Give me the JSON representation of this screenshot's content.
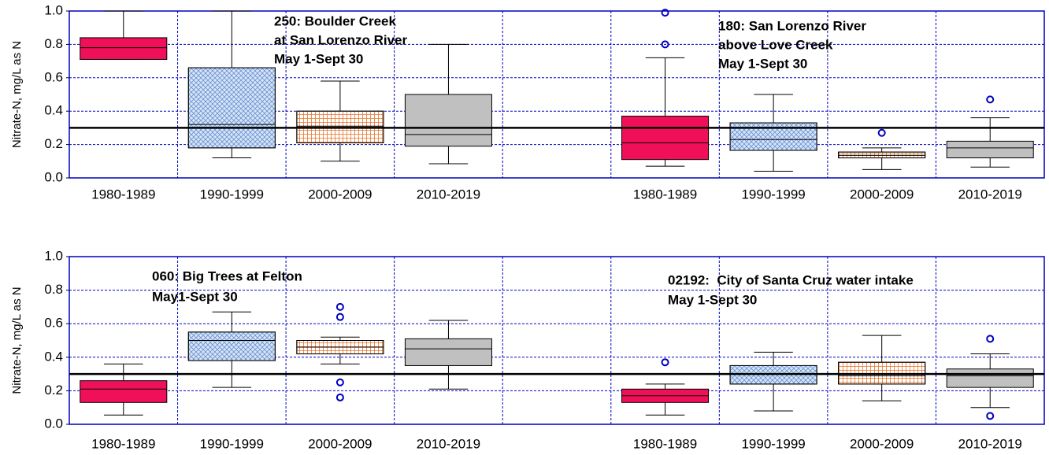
{
  "chart_data": [
    {
      "type": "box",
      "ylabel": "Nitrate-N, mg/L as N",
      "categories": [
        "1980-1989",
        "1990-1999",
        "2000-2009",
        "2010-2019",
        null,
        "1980-1989",
        "1990-1999",
        "2000-2009",
        "2010-2019"
      ],
      "colors": [
        "#f0105a",
        "#d6e6f7",
        "#ffffff",
        "#c0c0c0",
        null,
        "#f0105a",
        "#d6e6f7",
        "#ffffff",
        "#c0c0c0"
      ],
      "hatches": [
        "none",
        "crosshatch",
        "grid",
        "none",
        null,
        "none",
        "crosshatch",
        "grid",
        "none"
      ],
      "ylim": [
        0,
        1
      ],
      "yticks": [
        {
          "value": 0,
          "label": "0.0"
        },
        0.2,
        0.4,
        0.6,
        0.8,
        {
          "value": 1,
          "label": "1.0"
        }
      ],
      "grid": true,
      "reference_line": 0.3,
      "boxes": [
        {
          "whisker_low": 0.71,
          "q1": 0.71,
          "median": 0.78,
          "q3": 0.84,
          "whisker_high": 1.0,
          "outliers": []
        },
        {
          "whisker_low": 0.12,
          "q1": 0.18,
          "median": 0.32,
          "q3": 0.66,
          "whisker_high": 1.0,
          "outliers": []
        },
        {
          "whisker_low": 0.1,
          "q1": 0.21,
          "median": 0.31,
          "q3": 0.4,
          "whisker_high": 0.58,
          "outliers": []
        },
        {
          "whisker_low": 0.085,
          "q1": 0.19,
          "median": 0.26,
          "q3": 0.5,
          "whisker_high": 0.8,
          "outliers": []
        },
        null,
        {
          "whisker_low": 0.07,
          "q1": 0.11,
          "median": 0.21,
          "q3": 0.37,
          "whisker_high": 0.72,
          "outliers": [
            0.99,
            0.8
          ]
        },
        {
          "whisker_low": 0.04,
          "q1": 0.165,
          "median": 0.23,
          "q3": 0.33,
          "whisker_high": 0.5,
          "outliers": []
        },
        {
          "whisker_low": 0.05,
          "q1": 0.12,
          "median": 0.135,
          "q3": 0.155,
          "whisker_high": 0.18,
          "outliers": [
            0.27
          ]
        },
        {
          "whisker_low": 0.065,
          "q1": 0.12,
          "median": 0.18,
          "q3": 0.22,
          "whisker_high": 0.36,
          "outliers": [
            0.47
          ]
        }
      ],
      "annotations": [
        [
          "250: Boulder Creek",
          "at San Lorenzo River",
          "May 1-Sept 30"
        ],
        [
          "180: San Lorenzo River",
          "above Love Creek",
          "May 1-Sept 30"
        ]
      ]
    },
    {
      "type": "box",
      "ylabel": "Nitrate-N, mg/L as N",
      "categories": [
        "1980-1989",
        "1990-1999",
        "2000-2009",
        "2010-2019",
        null,
        "1980-1989",
        "1990-1999",
        "2000-2009",
        "2010-2019"
      ],
      "colors": [
        "#f0105a",
        "#d6e6f7",
        "#ffffff",
        "#c0c0c0",
        null,
        "#f0105a",
        "#d6e6f7",
        "#ffffff",
        "#c0c0c0"
      ],
      "hatches": [
        "none",
        "crosshatch",
        "grid",
        "none",
        null,
        "none",
        "crosshatch",
        "grid",
        "none"
      ],
      "ylim": [
        0,
        1
      ],
      "yticks": [
        {
          "value": 0,
          "label": "0.0"
        },
        0.2,
        0.4,
        0.6,
        0.8,
        {
          "value": 1,
          "label": "1.0"
        }
      ],
      "grid": true,
      "reference_line": 0.3,
      "boxes": [
        {
          "whisker_low": 0.055,
          "q1": 0.13,
          "median": 0.21,
          "q3": 0.26,
          "whisker_high": 0.36,
          "outliers": []
        },
        {
          "whisker_low": 0.22,
          "q1": 0.38,
          "median": 0.5,
          "q3": 0.55,
          "whisker_high": 0.67,
          "outliers": []
        },
        {
          "whisker_low": 0.36,
          "q1": 0.42,
          "median": 0.46,
          "q3": 0.5,
          "whisker_high": 0.52,
          "outliers": [
            0.7,
            0.64,
            0.25,
            0.16
          ]
        },
        {
          "whisker_low": 0.21,
          "q1": 0.35,
          "median": 0.45,
          "q3": 0.51,
          "whisker_high": 0.62,
          "outliers": []
        },
        null,
        {
          "whisker_low": 0.055,
          "q1": 0.13,
          "median": 0.17,
          "q3": 0.21,
          "whisker_high": 0.24,
          "outliers": [
            0.37
          ]
        },
        {
          "whisker_low": 0.08,
          "q1": 0.24,
          "median": 0.3,
          "q3": 0.35,
          "whisker_high": 0.43,
          "outliers": []
        },
        {
          "whisker_low": 0.14,
          "q1": 0.24,
          "median": 0.29,
          "q3": 0.37,
          "whisker_high": 0.53,
          "outliers": []
        },
        {
          "whisker_low": 0.1,
          "q1": 0.22,
          "median": 0.29,
          "q3": 0.33,
          "whisker_high": 0.42,
          "outliers": [
            0.51,
            0.05
          ]
        }
      ],
      "annotations": [
        [
          "060: Big Trees at Felton",
          "May1-Sept 30"
        ],
        [
          "02192:  City of Santa Cruz water intake",
          "May 1-Sept 30"
        ]
      ]
    }
  ]
}
